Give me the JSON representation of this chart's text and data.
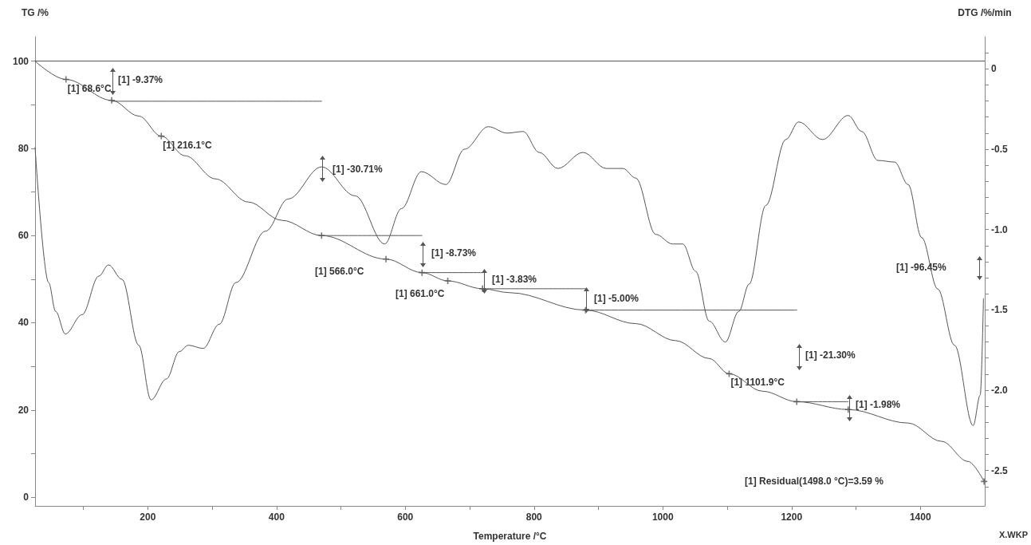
{
  "chart_data": {
    "type": "line",
    "xlabel": "Temperature /°C",
    "ylabel": "TG /%",
    "y2label": "DTG /%/min",
    "xlim": [
      25,
      1500
    ],
    "xticks": [
      {
        "value": 100,
        "label": null
      },
      200,
      {
        "value": 300,
        "label": null
      },
      400,
      {
        "value": 500,
        "label": null
      },
      600,
      {
        "value": 700,
        "label": null
      },
      800,
      {
        "value": 900,
        "label": null
      },
      1000,
      {
        "value": 1100,
        "label": null
      },
      1200,
      {
        "value": 1300,
        "label": null
      },
      1400
    ],
    "ylim": [
      -2,
      105.6
    ],
    "yticks": [
      0,
      {
        "value": 10,
        "label": null
      },
      20,
      {
        "value": 30,
        "label": null
      },
      40,
      {
        "value": 50,
        "label": null
      },
      60,
      {
        "value": 70,
        "label": null
      },
      80,
      {
        "value": 90,
        "label": null
      },
      100
    ],
    "y2lim": [
      -2.72,
      0.2
    ],
    "y2ticks": [
      {
        "value": 0.1,
        "label": null
      },
      0,
      {
        "value": -0.1,
        "label": null
      },
      {
        "value": -0.2,
        "label": null
      },
      {
        "value": -0.3,
        "label": null
      },
      {
        "value": -0.4,
        "label": null
      },
      {
        "value": -0.5,
        "label": "-0.5"
      },
      {
        "value": -0.6,
        "label": null
      },
      {
        "value": -0.7,
        "label": null
      },
      {
        "value": -0.8,
        "label": null
      },
      {
        "value": -0.9,
        "label": null
      },
      {
        "value": -1.0,
        "label": "-1.0"
      },
      {
        "value": -1.1,
        "label": null
      },
      {
        "value": -1.2,
        "label": null
      },
      {
        "value": -1.3,
        "label": null
      },
      {
        "value": -1.4,
        "label": null
      },
      {
        "value": -1.5,
        "label": "-1.5"
      },
      {
        "value": -1.6,
        "label": null
      },
      {
        "value": -1.7,
        "label": null
      },
      {
        "value": -1.8,
        "label": null
      },
      {
        "value": -1.9,
        "label": null
      },
      {
        "value": -2.0,
        "label": "-2.0"
      },
      {
        "value": -2.1,
        "label": null
      },
      {
        "value": -2.2,
        "label": null
      },
      {
        "value": -2.3,
        "label": null
      },
      {
        "value": -2.4,
        "label": null
      },
      {
        "value": -2.5,
        "label": "-2.5"
      },
      {
        "value": -2.6,
        "label": null
      }
    ],
    "line_style": "solid",
    "series": [
      {
        "color": "#555555",
        "x": [
          25,
          73,
          144,
          186,
          221,
          258,
          305,
          356,
          408,
          470,
          570,
          626,
          666,
          720,
          762,
          880,
          958,
          1020,
          1072,
          1103,
          1155,
          1208,
          1288,
          1381,
          1433,
          1474,
          1499
        ],
        "values": [
          100,
          95.8,
          91.0,
          87.4,
          82.8,
          78.3,
          73.0,
          67.7,
          63.5,
          60.0,
          54.6,
          51.5,
          49.6,
          47.8,
          46.9,
          42.9,
          39.8,
          35.9,
          31.8,
          28.3,
          24.3,
          21.9,
          20.1,
          17.0,
          12.8,
          8.2,
          3.6
        ]
      },
      {
        "color": "#555555",
        "axis": "y2",
        "x": [
          25,
          46,
          57,
          72,
          98,
          124,
          139,
          160,
          186,
          205,
          229,
          249,
          263,
          286,
          311,
          337,
          383,
          418,
          470,
          522,
          568,
          594,
          625,
          663,
          692,
          729,
          758,
          783,
          808,
          837,
          876,
          912,
          938,
          958,
          989,
          1015,
          1031,
          1051,
          1072,
          1097,
          1118,
          1134,
          1160,
          1191,
          1211,
          1248,
          1288,
          1309,
          1334,
          1360,
          1381,
          1402,
          1427,
          1453,
          1482,
          1493,
          1498
        ],
        "values": [
          -0.49,
          -1.33,
          -1.51,
          -1.65,
          -1.53,
          -1.29,
          -1.22,
          -1.31,
          -1.72,
          -2.06,
          -1.93,
          -1.76,
          -1.72,
          -1.74,
          -1.59,
          -1.33,
          -1.01,
          -0.81,
          -0.61,
          -0.79,
          -1.09,
          -0.87,
          -0.64,
          -0.72,
          -0.5,
          -0.36,
          -0.4,
          -0.39,
          -0.52,
          -0.62,
          -0.52,
          -0.62,
          -0.62,
          -0.68,
          -1.03,
          -1.09,
          -1.09,
          -1.26,
          -1.57,
          -1.7,
          -1.51,
          -1.34,
          -0.85,
          -0.44,
          -0.33,
          -0.44,
          -0.29,
          -0.39,
          -0.57,
          -0.58,
          -0.72,
          -1.05,
          -1.37,
          -1.72,
          -2.22,
          -2.03,
          -1.43
        ]
      },
      {
        "color": "#555555",
        "x": [
          144,
          470
        ],
        "values": [
          90.8,
          90.8
        ]
      },
      {
        "color": "#555555",
        "x": [
          470,
          626
        ],
        "values": [
          60.0,
          60.0
        ]
      },
      {
        "color": "#555555",
        "x": [
          626,
          720
        ],
        "values": [
          51.5,
          51.5
        ]
      },
      {
        "color": "#555555",
        "x": [
          720,
          880
        ],
        "values": [
          47.8,
          47.8
        ]
      },
      {
        "color": "#555555",
        "x": [
          880,
          1208
        ],
        "values": [
          42.9,
          42.9
        ]
      },
      {
        "color": "#555555",
        "x": [
          1208,
          1288
        ],
        "values": [
          21.9,
          21.9
        ]
      },
      {
        "type": "scatter",
        "marker": "cross",
        "color": "#555555",
        "x": [
          73,
          144,
          221,
          470,
          570,
          626,
          666,
          720,
          880,
          1103,
          1208,
          1288,
          1499
        ],
        "values": [
          95.8,
          91.0,
          82.8,
          60.0,
          54.6,
          51.5,
          49.6,
          47.8,
          42.9,
          28.3,
          21.9,
          20.1,
          3.6
        ]
      }
    ],
    "ref_lines": [
      {
        "axis": "y",
        "value": 100,
        "color": "#555555"
      }
    ],
    "annotations": [
      {
        "text": "[1] 68.6°C",
        "x": 73,
        "y": 95.8
      },
      "[1] -9.37%",
      {
        "text": "[1] 216.1°C",
        "x": 221,
        "y": 82.8
      },
      "[1] -30.71%",
      "[1] 566.0°C",
      "[1] -8.73%",
      "[1] 661.0°C",
      "[1] -3.83%",
      "[1] -5.00%",
      "[1] -21.30%",
      {
        "text": "[1] 1101.9°C",
        "x": 1103,
        "y": 28.3
      },
      "[1] -1.98%",
      "[1] -96.45%",
      "[1] Residual(1498.0 °C)=3.59 %",
      "X.WKP"
    ]
  }
}
